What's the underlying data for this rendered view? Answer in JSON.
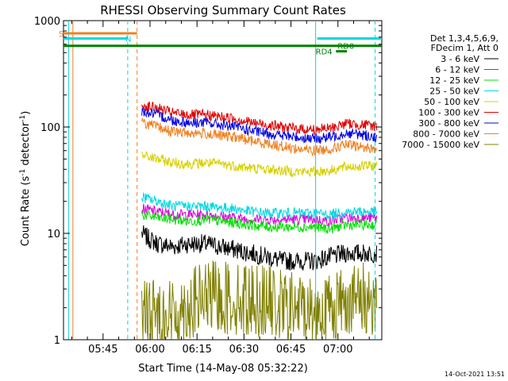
{
  "chart_data": {
    "type": "line",
    "title": "RHESSI Observing Summary Count Rates",
    "xlabel": "Start Time (14-May-08 05:32:22)",
    "ylabel_main": "Count Rate (s",
    "ylabel_sup1": "-1",
    "ylabel_mid": " detector",
    "ylabel_sup2": "-1",
    "ylabel_end": ")",
    "x_unit": "minutes after 05:32:22",
    "xlim": [
      0,
      101.63
    ],
    "ylim": [
      1,
      1000
    ],
    "yscale": "log",
    "xticks": [
      {
        "label": "05:45",
        "value": 12.63
      },
      {
        "label": "06:00",
        "value": 27.63
      },
      {
        "label": "06:15",
        "value": 42.63
      },
      {
        "label": "06:30",
        "value": 57.63
      },
      {
        "label": "06:45",
        "value": 72.63
      },
      {
        "label": "07:00",
        "value": 87.63
      }
    ],
    "yticks": [
      {
        "label": "1",
        "value": 1
      },
      {
        "label": "10",
        "value": 10
      },
      {
        "label": "100",
        "value": 100
      },
      {
        "label": "1000",
        "value": 1000
      }
    ],
    "legend_header": [
      "Det 1,3,4,5,6,9,",
      "FDecim 1, Att 0"
    ],
    "legend_placement": "right",
    "series": [
      {
        "name": "3 - 6 keV",
        "color": "#000000",
        "x": [
          25,
          27,
          30,
          35,
          40,
          45,
          50,
          55,
          60,
          65,
          70,
          75,
          80,
          85,
          90,
          95,
          100
        ],
        "y": [
          10,
          9,
          8,
          7.5,
          8,
          8,
          7.5,
          7,
          6.5,
          6,
          5.5,
          5.5,
          5.5,
          6,
          6.5,
          6.5,
          6.5
        ]
      },
      {
        "name": "6 - 12 keV",
        "color": "#e000e0",
        "x": [
          25,
          30,
          35,
          40,
          45,
          50,
          55,
          60,
          65,
          70,
          75,
          80,
          85,
          90,
          95,
          100
        ],
        "y": [
          17,
          16,
          15,
          15,
          15,
          14.5,
          14,
          13.5,
          13.5,
          13.5,
          13.5,
          13.5,
          13,
          14,
          14,
          14
        ]
      },
      {
        "name": "12 - 25 keV",
        "color": "#00e000",
        "x": [
          25,
          30,
          35,
          40,
          45,
          50,
          55,
          60,
          65,
          70,
          75,
          80,
          85,
          90,
          95,
          100
        ],
        "y": [
          15,
          14,
          13.5,
          13,
          13.5,
          13,
          12.5,
          12,
          11.5,
          11.5,
          11.5,
          11.5,
          11,
          12,
          12,
          12
        ]
      },
      {
        "name": "25 - 50 keV",
        "color": "#00d8e0",
        "x": [
          25,
          30,
          35,
          40,
          45,
          50,
          55,
          60,
          65,
          70,
          75,
          80,
          85,
          90,
          95,
          100
        ],
        "y": [
          22,
          20,
          18,
          18,
          18,
          17.5,
          17,
          16,
          15.5,
          15.5,
          15.5,
          15.5,
          15,
          16,
          16,
          16
        ]
      },
      {
        "name": "50 - 100 keV",
        "color": "#d8d000",
        "x": [
          25,
          30,
          35,
          40,
          45,
          50,
          55,
          60,
          65,
          70,
          75,
          80,
          85,
          90,
          95,
          100
        ],
        "y": [
          54,
          50,
          46,
          45,
          46,
          45,
          43,
          41,
          40,
          39,
          38,
          38,
          39,
          42,
          43,
          43
        ]
      },
      {
        "name": "100 - 300 keV",
        "color": "#e00000",
        "x": [
          25,
          30,
          35,
          40,
          45,
          50,
          55,
          60,
          65,
          70,
          75,
          80,
          85,
          90,
          95,
          100
        ],
        "y": [
          160,
          150,
          135,
          130,
          130,
          125,
          120,
          110,
          105,
          100,
          96,
          95,
          97,
          108,
          105,
          102
        ]
      },
      {
        "name": "300 - 800 keV",
        "color": "#0000e0",
        "x": [
          25,
          30,
          35,
          40,
          45,
          50,
          55,
          60,
          65,
          70,
          75,
          80,
          85,
          90,
          95,
          100
        ],
        "y": [
          140,
          130,
          115,
          110,
          110,
          105,
          100,
          92,
          87,
          83,
          80,
          78,
          80,
          88,
          85,
          80
        ]
      },
      {
        "name": "800 - 7000 keV",
        "color": "#f08020",
        "x": [
          25,
          30,
          35,
          40,
          45,
          50,
          55,
          60,
          65,
          70,
          75,
          80,
          85,
          90,
          95,
          100
        ],
        "y": [
          110,
          100,
          90,
          88,
          87,
          83,
          80,
          74,
          70,
          66,
          62,
          60,
          62,
          68,
          65,
          62
        ]
      },
      {
        "name": "7000 - 15000 keV",
        "color": "#808000",
        "x": [
          25,
          35,
          45,
          50,
          55,
          60,
          65,
          70,
          75,
          80,
          85,
          90,
          95,
          100
        ],
        "y": [
          1.7,
          1.7,
          2.5,
          2.5,
          2.4,
          2.4,
          2.3,
          2.0,
          2.0,
          1.8,
          2.0,
          2.4,
          2.4,
          2.4
        ]
      }
    ],
    "vertical_lines": [
      {
        "x": 1.6,
        "color": "#00d8e0",
        "style": "solid"
      },
      {
        "x": 3.0,
        "color": "#f08020",
        "style": "solid"
      },
      {
        "x": 20.5,
        "color": "#00d8e0",
        "style": "dashed"
      },
      {
        "x": 23.5,
        "color": "#f08020",
        "style": "dashed"
      },
      {
        "x": 80.5,
        "color": "#00d8e0",
        "style": "solid"
      },
      {
        "x": 99.5,
        "color": "#00d8e0",
        "style": "dashed"
      }
    ],
    "flag_bars": [
      {
        "label": "S",
        "x0": 0,
        "x1": 23.5,
        "y": 760,
        "color": "#f08020"
      },
      {
        "label": "N",
        "x0": 0,
        "x1": 20.5,
        "y": 680,
        "color": "#00d8e0"
      },
      {
        "label": "",
        "x0": 0,
        "x1": 101.63,
        "y": 580,
        "color": "#008000"
      },
      {
        "label": "",
        "x0": 81,
        "x1": 101.63,
        "y": 680,
        "color": "#00d8e0"
      },
      {
        "label": "RD4",
        "x0": 87,
        "x1": 90.5,
        "y": 515,
        "color": "#008000"
      }
    ],
    "flag_labels": [
      {
        "text": "S",
        "color": "#f08020"
      },
      {
        "text": "N",
        "color": "#00d8e0"
      },
      {
        "text": "RD0",
        "color": "#008000"
      },
      {
        "text": "RD4",
        "color": "#008000"
      }
    ]
  },
  "footer": {
    "timestamp": "14-Oct-2021 13:51"
  }
}
